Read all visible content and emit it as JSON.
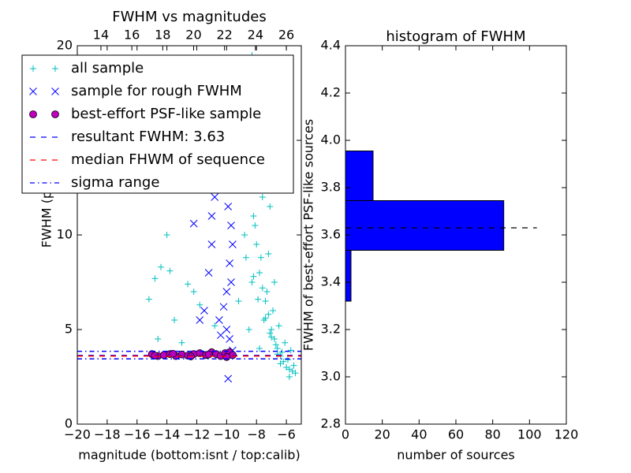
{
  "chart_data": [
    {
      "type": "scatter",
      "title": "FWHM vs magnitudes",
      "xlabel": "magnitude (bottom:isnt / top:calib)",
      "ylabel": "FWHM (pix)",
      "xlim": [
        -20,
        -5
      ],
      "ylim": [
        0,
        20
      ],
      "xticks": [
        {
          "value": -20,
          "label": "−20"
        },
        {
          "value": -18,
          "label": "−18"
        },
        {
          "value": -16,
          "label": "−16"
        },
        {
          "value": -14,
          "label": "−14"
        },
        {
          "value": -12,
          "label": "−12"
        },
        {
          "value": -10,
          "label": "−10"
        },
        {
          "value": -8,
          "label": "−8"
        },
        {
          "value": -6,
          "label": "−6"
        }
      ],
      "yticks": [
        0,
        5,
        10,
        15,
        20
      ],
      "x2lim": [
        12.47,
        26.97
      ],
      "x2ticks": [
        14,
        16,
        18,
        20,
        22,
        24,
        26
      ],
      "series": [
        {
          "name": "all sample",
          "color": "#00bfbf",
          "marker": "plus",
          "x": [
            -8.5,
            -8.2,
            -8.0,
            -7.8,
            -7.6,
            -7.4,
            -7.2,
            -7.0,
            -6.8,
            -6.6,
            -6.4,
            -6.2,
            -6.0,
            -5.8,
            -5.6,
            -5.4,
            -8.7,
            -8.3,
            -7.9,
            -7.5,
            -7.1,
            -6.7,
            -6.3,
            -5.9,
            -5.5,
            -8.9,
            -8.4,
            -8.1,
            -7.7,
            -7.3,
            -6.9,
            -6.5,
            -6.1,
            -5.7,
            -9.0,
            -8.6,
            -8.0,
            -7.6,
            -7.2,
            -6.8,
            -8.8,
            -8.2,
            -7.4,
            -7.0,
            -6.6,
            -9.2,
            -8.5,
            -7.8,
            -15.2,
            -14.8,
            -14.4,
            -14.0,
            -13.5,
            -13.0,
            -12.6,
            -11.8,
            -14.6,
            -13.8,
            -10.8,
            -12.2,
            -8.3,
            -7.9,
            -7.1,
            -6.4,
            -5.8
          ],
          "y": [
            12.5,
            11.0,
            9.5,
            8.0,
            7.2,
            6.5,
            5.8,
            5.0,
            4.5,
            4.0,
            3.6,
            3.3,
            3.0,
            2.9,
            2.8,
            2.7,
            8.8,
            7.5,
            6.6,
            5.5,
            4.8,
            4.2,
            3.8,
            3.4,
            3.1,
            15.0,
            13.2,
            10.5,
            8.8,
            7.0,
            6.0,
            5.2,
            4.3,
            3.9,
            18.0,
            14.0,
            16.5,
            12.0,
            9.0,
            7.5,
            10.0,
            7.8,
            5.6,
            4.6,
            3.7,
            6.5,
            5.0,
            4.0,
            6.6,
            7.7,
            8.3,
            10.0,
            5.5,
            4.3,
            7.4,
            6.3,
            4.5,
            8.1,
            5.2,
            7.0,
            19.5,
            17.2,
            11.5,
            3.2,
            2.5
          ]
        },
        {
          "name": "sample for rough FWHM",
          "color": "#0000ff",
          "marker": "cross",
          "x": [
            -10.5,
            -10.2,
            -10.0,
            -9.8,
            -9.6,
            -9.7,
            -9.9,
            -10.1,
            -10.3,
            -10.6,
            -11.0,
            -11.2,
            -11.5,
            -11.8,
            -12.2,
            -9.6,
            -9.7,
            -9.8,
            -10.0,
            -10.4,
            -9.9,
            -9.6,
            -11.0,
            -10.8,
            -9.7
          ],
          "y": [
            5.5,
            6.2,
            7.0,
            8.5,
            9.5,
            10.5,
            11.5,
            12.8,
            13.5,
            14.2,
            11.0,
            8.0,
            6.0,
            5.5,
            10.6,
            15.0,
            16.5,
            4.5,
            5.0,
            4.7,
            2.4,
            3.9,
            9.5,
            12.0,
            7.5
          ]
        },
        {
          "name": "best-effort PSF-like sample",
          "color": "#bf00bf",
          "marker": "circle",
          "x": [
            -15.0,
            -14.6,
            -14.2,
            -13.8,
            -13.4,
            -13.0,
            -12.6,
            -12.2,
            -11.8,
            -11.4,
            -11.0,
            -10.7,
            -10.4,
            -10.1,
            -9.8,
            -9.6,
            -14.8,
            -13.6,
            -12.4,
            -11.2,
            -10.0
          ],
          "y": [
            3.7,
            3.6,
            3.65,
            3.7,
            3.6,
            3.68,
            3.62,
            3.7,
            3.75,
            3.65,
            3.8,
            3.7,
            3.6,
            3.75,
            3.8,
            3.65,
            3.62,
            3.72,
            3.58,
            3.68,
            3.55
          ]
        }
      ],
      "lines": [
        {
          "name": "resultant FWHM: 3.63",
          "color": "#0000ff",
          "style": "dashed",
          "values": [
            3.63
          ]
        },
        {
          "name": "median FHWM of sequence",
          "color": "#ff0000",
          "style": "dashed",
          "values": [
            3.6
          ]
        },
        {
          "name": "sigma range",
          "color": "#0000ff",
          "style": "dashdot",
          "values": [
            3.85,
            3.45
          ]
        }
      ]
    },
    {
      "type": "histogram",
      "title": "histogram of FWHM",
      "xlabel": "number of sources",
      "ylabel": "FWHM of best-effort PSF-like sources",
      "orientation": "horizontal",
      "color": "#0000ff",
      "bins": [
        3.32,
        3.535,
        3.745,
        3.955
      ],
      "counts": [
        3,
        86,
        15
      ],
      "xlim": [
        0,
        120
      ],
      "ylim": [
        2.8,
        4.4
      ],
      "xticks": [
        0,
        20,
        40,
        60,
        80,
        100,
        120
      ],
      "yticks": [
        2.8,
        {
          "value": 3,
          "label": "3.0"
        },
        3.2,
        3.4,
        3.6,
        3.8,
        {
          "value": 4,
          "label": "4.0"
        },
        4.2,
        4.4
      ],
      "line": {
        "value": 3.63,
        "xrange": [
          0,
          104
        ],
        "color": "#000000",
        "style": "dashed"
      }
    }
  ]
}
